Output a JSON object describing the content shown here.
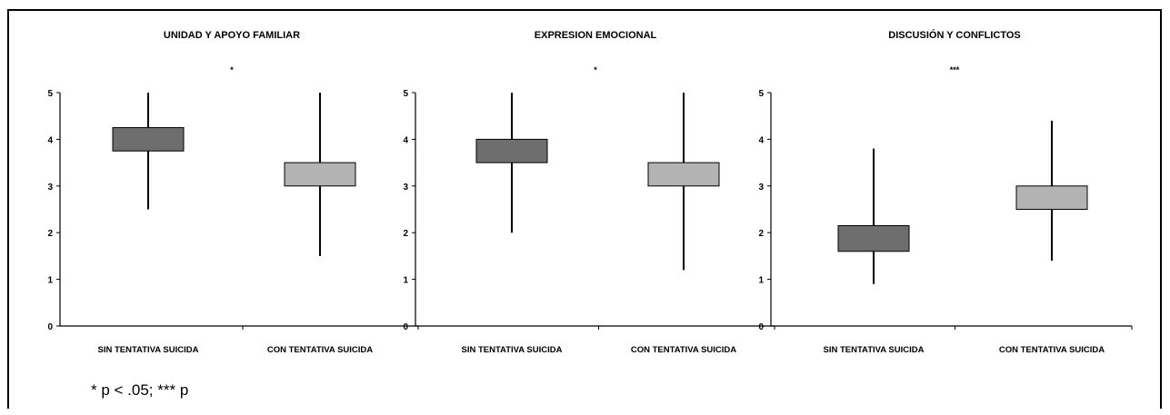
{
  "footnote": "* p < .05; *** p",
  "chart_data": [
    {
      "type": "boxplot",
      "title": "UNIDAD Y APOYO FAMILIAR",
      "significance": "*",
      "categories": [
        "SIN TENTATIVA SUICIDA",
        "CON TENTATIVA SUICIDA"
      ],
      "ylim": [
        0,
        5
      ],
      "yticks": [
        "0",
        "1",
        "2",
        "3",
        "4",
        "5"
      ],
      "boxes": [
        {
          "min": 2.5,
          "q1": 3.75,
          "q3": 4.25,
          "max": 5.0,
          "color": "#6e6e6e"
        },
        {
          "min": 1.5,
          "q1": 3.0,
          "q3": 3.5,
          "max": 5.0,
          "color": "#b3b3b3"
        }
      ]
    },
    {
      "type": "boxplot",
      "title": "EXPRESION EMOCIONAL",
      "significance": "*",
      "categories": [
        "SIN TENTATIVA SUICIDA",
        "CON TENTATIVA SUICIDA"
      ],
      "ylim": [
        0,
        5
      ],
      "yticks": [
        "0",
        "1",
        "2",
        "3",
        "4",
        "5"
      ],
      "boxes": [
        {
          "min": 2.0,
          "q1": 3.5,
          "q3": 4.0,
          "max": 5.0,
          "color": "#6e6e6e"
        },
        {
          "min": 1.2,
          "q1": 3.0,
          "q3": 3.5,
          "max": 5.0,
          "color": "#b3b3b3"
        }
      ]
    },
    {
      "type": "boxplot",
      "title": "DISCUSIÓN Y CONFLICTOS",
      "significance": "***",
      "categories": [
        "SIN TENTATIVA SUICIDA",
        "CON TENTATIVA SUICIDA"
      ],
      "ylim": [
        0,
        5
      ],
      "yticks": [
        "0",
        "1",
        "2",
        "3",
        "4",
        "5"
      ],
      "boxes": [
        {
          "min": 0.9,
          "q1": 1.6,
          "q3": 2.15,
          "max": 3.8,
          "color": "#6e6e6e"
        },
        {
          "min": 1.4,
          "q1": 2.5,
          "q3": 3.0,
          "max": 4.4,
          "color": "#b3b3b3"
        }
      ]
    }
  ]
}
